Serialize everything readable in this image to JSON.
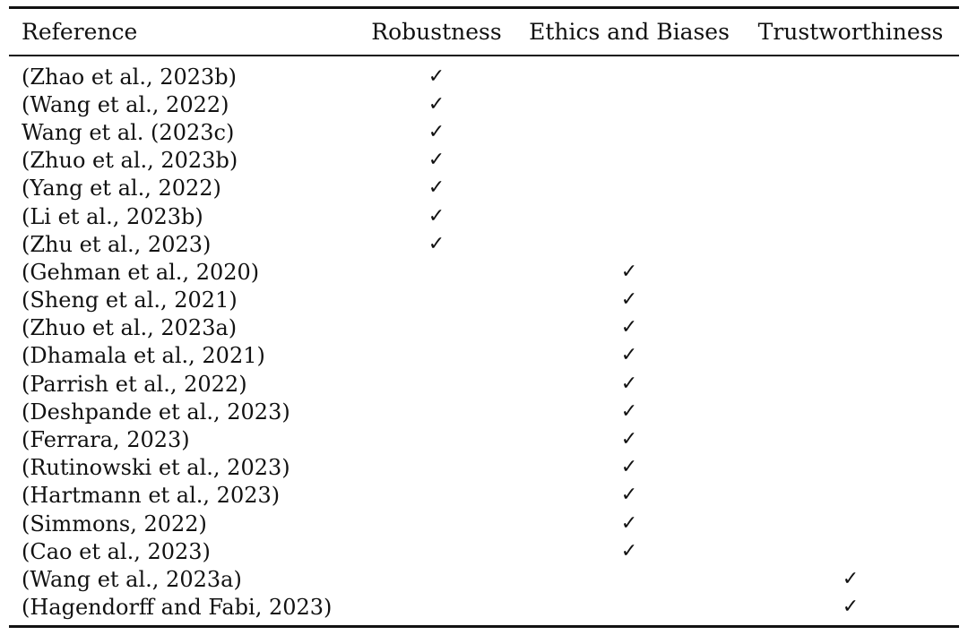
{
  "table": {
    "headers": {
      "reference": "Reference",
      "robustness": "Robustness",
      "ethics": "Ethics and Biases",
      "trust": "Trustworthiness"
    },
    "check_mark": "✓",
    "rows": [
      {
        "reference": "(Zhao et al., 2023b)",
        "robustness": "✓",
        "ethics": "",
        "trust": ""
      },
      {
        "reference": "(Wang et al., 2022)",
        "robustness": "✓",
        "ethics": "",
        "trust": ""
      },
      {
        "reference": "Wang et al. (2023c)",
        "robustness": "✓",
        "ethics": "",
        "trust": ""
      },
      {
        "reference": "(Zhuo et al., 2023b)",
        "robustness": "✓",
        "ethics": "",
        "trust": ""
      },
      {
        "reference": "(Yang et al., 2022)",
        "robustness": "✓",
        "ethics": "",
        "trust": ""
      },
      {
        "reference": "(Li et al., 2023b)",
        "robustness": "✓",
        "ethics": "",
        "trust": ""
      },
      {
        "reference": "(Zhu et al., 2023)",
        "robustness": "✓",
        "ethics": "",
        "trust": ""
      },
      {
        "reference": "(Gehman et al., 2020)",
        "robustness": "",
        "ethics": "✓",
        "trust": ""
      },
      {
        "reference": "(Sheng et al., 2021)",
        "robustness": "",
        "ethics": "✓",
        "trust": ""
      },
      {
        "reference": "(Zhuo et al., 2023a)",
        "robustness": "",
        "ethics": "✓",
        "trust": ""
      },
      {
        "reference": "(Dhamala et al., 2021)",
        "robustness": "",
        "ethics": "✓",
        "trust": ""
      },
      {
        "reference": "(Parrish et al., 2022)",
        "robustness": "",
        "ethics": "✓",
        "trust": ""
      },
      {
        "reference": "(Deshpande et al., 2023)",
        "robustness": "",
        "ethics": "✓",
        "trust": ""
      },
      {
        "reference": "(Ferrara, 2023)",
        "robustness": "",
        "ethics": "✓",
        "trust": ""
      },
      {
        "reference": "(Rutinowski et al., 2023)",
        "robustness": "",
        "ethics": "✓",
        "trust": ""
      },
      {
        "reference": "(Hartmann et al., 2023)",
        "robustness": "",
        "ethics": "✓",
        "trust": ""
      },
      {
        "reference": "(Simmons, 2022)",
        "robustness": "",
        "ethics": "✓",
        "trust": ""
      },
      {
        "reference": "(Cao et al., 2023)",
        "robustness": "",
        "ethics": "✓",
        "trust": ""
      },
      {
        "reference": "(Wang et al., 2023a)",
        "robustness": "",
        "ethics": "",
        "trust": "✓"
      },
      {
        "reference": "(Hagendorff and Fabi, 2023)",
        "robustness": "",
        "ethics": "",
        "trust": "✓"
      }
    ]
  }
}
